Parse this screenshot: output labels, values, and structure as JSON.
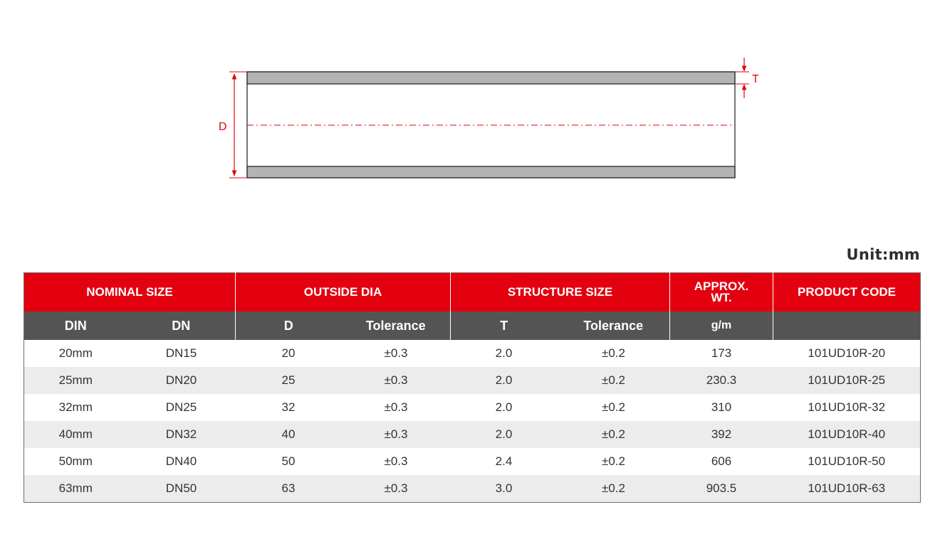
{
  "diagram": {
    "label_d": "D",
    "label_t": "T",
    "colors": {
      "dimension": "#e3000f",
      "wall_fill": "#b3b3b3",
      "wall_stroke": "#1a1a1a"
    }
  },
  "unit_label": "Unit:mm",
  "table": {
    "groups": {
      "nominal_size": "NOMINAL SIZE",
      "outside_dia": "OUTSIDE DIA",
      "structure_size": "STRUCTURE SIZE",
      "approx_wt": "APPROX. WT.",
      "product_code": "PRODUCT CODE"
    },
    "subheaders": {
      "din": "DIN",
      "dn": "DN",
      "d": "D",
      "tolerance_d": "Tolerance",
      "t": "T",
      "tolerance_t": "Tolerance",
      "weight_unit": "g/m",
      "product_code": ""
    },
    "rows": [
      {
        "din": "20mm",
        "dn": "DN15",
        "d": "20",
        "d_tol": "±0.3",
        "t": "2.0",
        "t_tol": "±0.2",
        "wt": "173",
        "code": "101UD10R-20"
      },
      {
        "din": "25mm",
        "dn": "DN20",
        "d": "25",
        "d_tol": "±0.3",
        "t": "2.0",
        "t_tol": "±0.2",
        "wt": "230.3",
        "code": "101UD10R-25"
      },
      {
        "din": "32mm",
        "dn": "DN25",
        "d": "32",
        "d_tol": "±0.3",
        "t": "2.0",
        "t_tol": "±0.2",
        "wt": "310",
        "code": "101UD10R-32"
      },
      {
        "din": "40mm",
        "dn": "DN32",
        "d": "40",
        "d_tol": "±0.3",
        "t": "2.0",
        "t_tol": "±0.2",
        "wt": "392",
        "code": "101UD10R-40"
      },
      {
        "din": "50mm",
        "dn": "DN40",
        "d": "50",
        "d_tol": "±0.3",
        "t": "2.4",
        "t_tol": "±0.2",
        "wt": "606",
        "code": "101UD10R-50"
      },
      {
        "din": "63mm",
        "dn": "DN50",
        "d": "63",
        "d_tol": "±0.3",
        "t": "3.0",
        "t_tol": "±0.2",
        "wt": "903.5",
        "code": "101UD10R-63"
      }
    ]
  }
}
